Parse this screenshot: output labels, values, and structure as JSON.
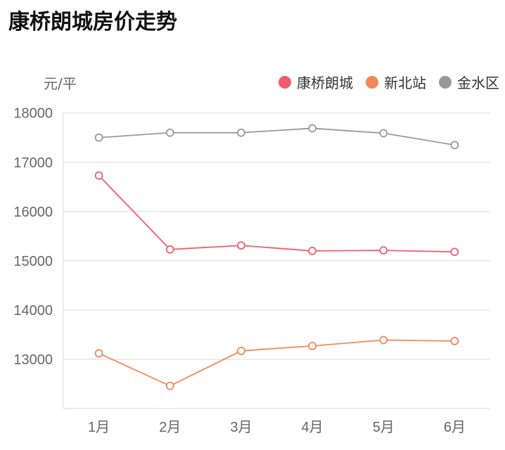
{
  "title": "康桥朗城房价走势",
  "chart_data": {
    "type": "line",
    "title": "康桥朗城房价走势",
    "ylabel": "元/平",
    "categories": [
      "1月",
      "2月",
      "3月",
      "4月",
      "5月",
      "6月"
    ],
    "ylim": [
      12000,
      18000
    ],
    "yticks": [
      13000,
      14000,
      15000,
      16000,
      17000,
      18000
    ],
    "grid": true,
    "legend": "top-right",
    "series": [
      {
        "name": "康桥朗城",
        "color": "#f25b6e",
        "values": [
          16730,
          15230,
          15310,
          15200,
          15210,
          15180
        ]
      },
      {
        "name": "新北站",
        "color": "#f5875a",
        "values": [
          13120,
          12460,
          13170,
          13270,
          13390,
          13370
        ]
      },
      {
        "name": "金水区",
        "color": "#999999",
        "values": [
          17500,
          17600,
          17600,
          17690,
          17590,
          17350
        ]
      }
    ]
  }
}
